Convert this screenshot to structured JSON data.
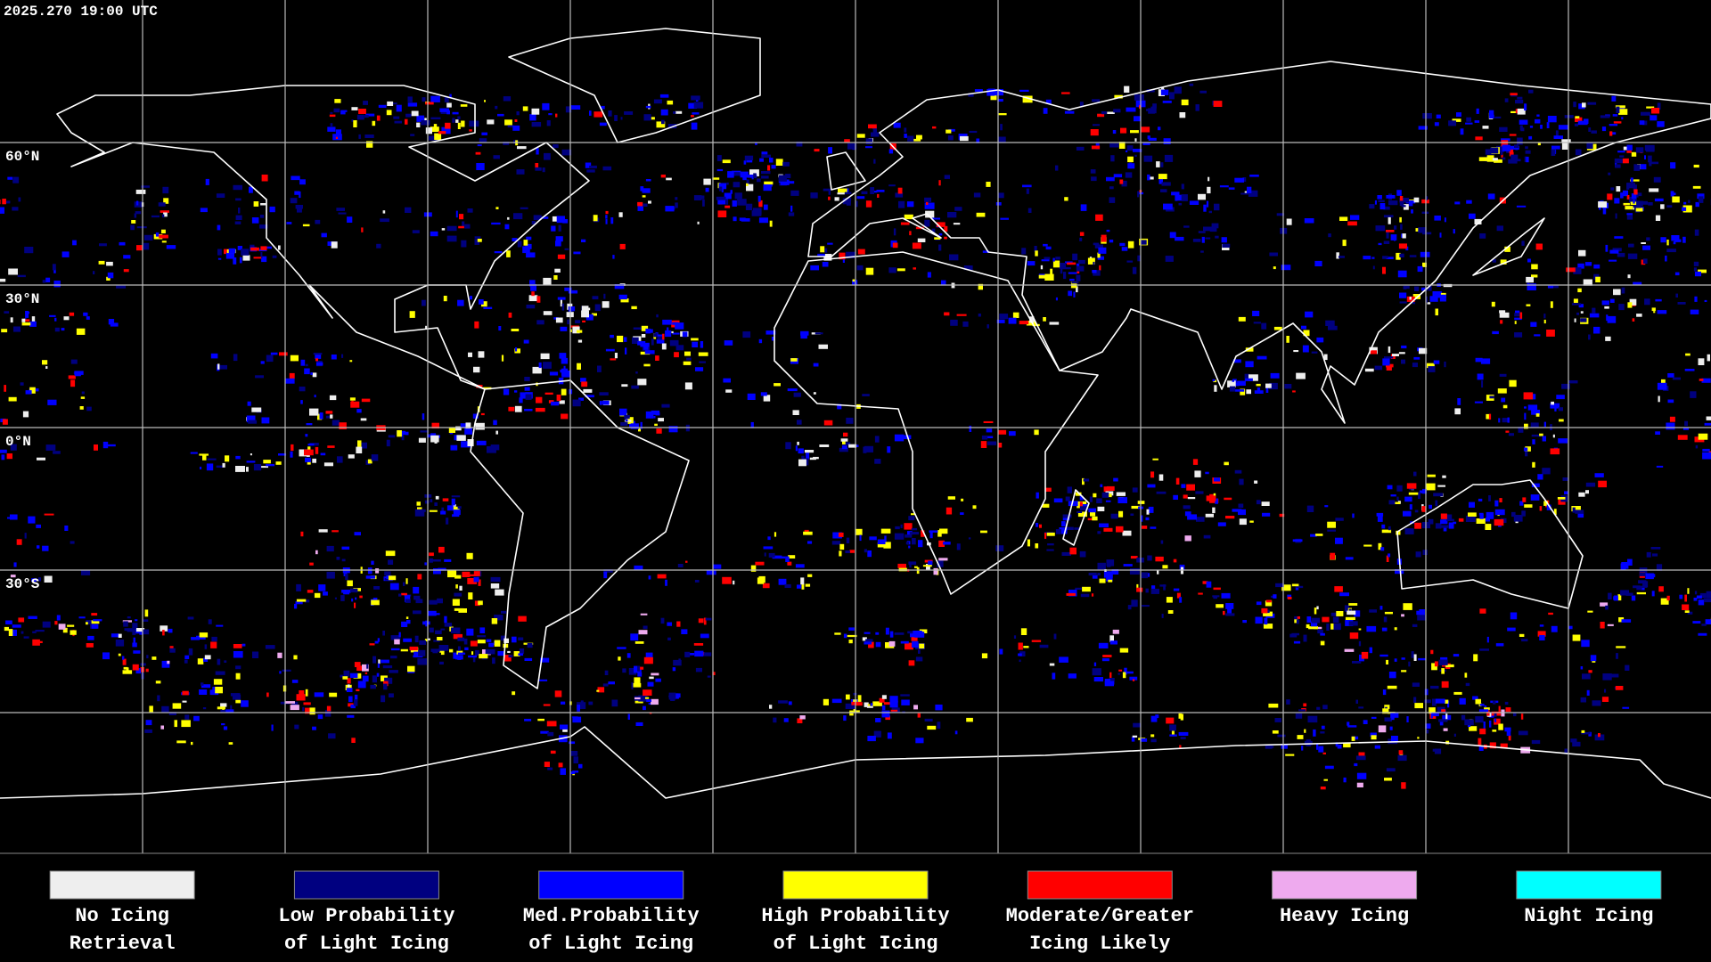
{
  "header": {
    "timestamp": "2025.270 19:00 UTC"
  },
  "map": {
    "latitude_labels": [
      "60°N",
      "30°N",
      "0°N",
      "30°S"
    ]
  },
  "legend": [
    {
      "lines": [
        "No Icing",
        "Retrieval"
      ],
      "color": "#eeeeee"
    },
    {
      "lines": [
        "Low Probability",
        "of Light Icing"
      ],
      "color": "#000080"
    },
    {
      "lines": [
        "Med.Probability",
        "of Light Icing"
      ],
      "color": "#0000ff"
    },
    {
      "lines": [
        "High Probability",
        "of Light Icing"
      ],
      "color": "#ffff00"
    },
    {
      "lines": [
        "Moderate/Greater",
        "Icing Likely"
      ],
      "color": "#ff0000"
    },
    {
      "lines": [
        "Heavy Icing"
      ],
      "color": "#eeaaee"
    },
    {
      "lines": [
        "Night Icing"
      ],
      "color": "#00ffff"
    }
  ]
}
